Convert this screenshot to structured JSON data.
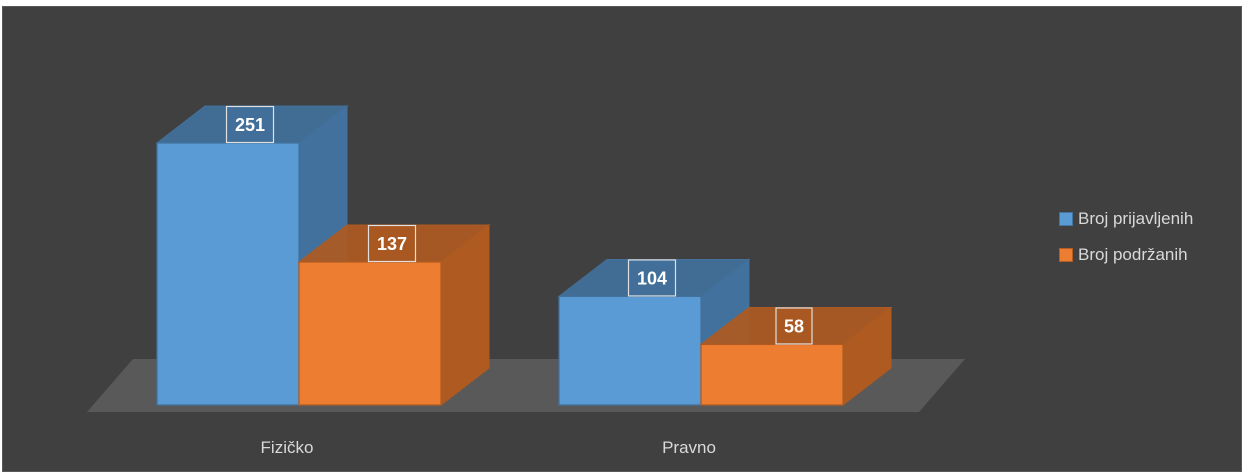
{
  "chart_data": {
    "type": "bar",
    "style": "3d-clustered-column",
    "categories": [
      "Fizičko",
      "Pravno"
    ],
    "series": [
      {
        "name": "Broj prijavljenih",
        "values": [
          251,
          104
        ],
        "color": "#5b9bd5",
        "dark": "#41719c"
      },
      {
        "name": "Broj podržanih",
        "values": [
          137,
          58
        ],
        "color": "#ed7d31",
        "dark": "#ae5a21"
      }
    ],
    "ylim": [
      0,
      251
    ],
    "grid": false,
    "legend_position": "right",
    "data_labels": true,
    "background": "#404040"
  }
}
